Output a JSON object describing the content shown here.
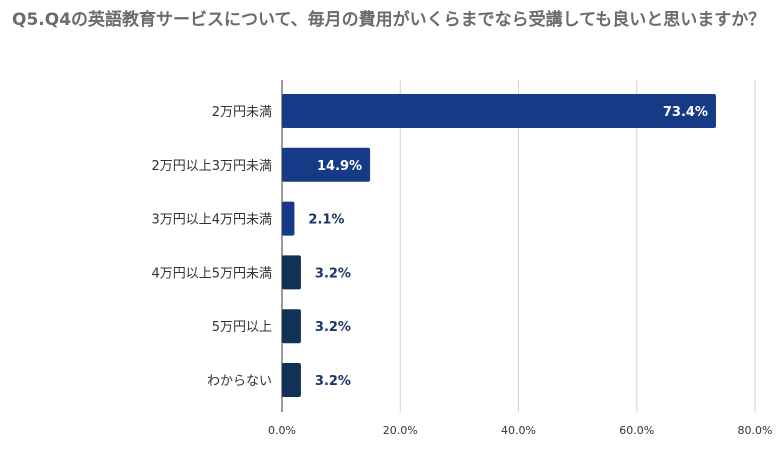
{
  "chart_data": {
    "type": "bar",
    "orientation": "horizontal",
    "title": "Q5.Q4の英語教育サービスについて、毎月の費用がいくらまでなら受講しても良いと思いますか？",
    "categories": [
      "2万円未満",
      "2万円以上3万円未満",
      "3万円以上4万円未満",
      "4万円以上5万円未満",
      "5万円以上",
      "わからない"
    ],
    "values": [
      73.4,
      14.9,
      2.1,
      3.2,
      3.2,
      3.2
    ],
    "value_labels": [
      "73.4%",
      "14.9%",
      "2.1%",
      "3.2%",
      "3.2%",
      "3.2%"
    ],
    "xlim": [
      0,
      80
    ],
    "xticks": [
      0,
      20,
      40,
      60,
      80
    ],
    "xtick_labels": [
      "0.0%",
      "20.0%",
      "40.0%",
      "60.0%",
      "80.0%"
    ],
    "grid": true,
    "legend": "none",
    "colors": {
      "bar_primary": "#173a86",
      "bar_secondary": "#0f3256",
      "grid": "#d3d3d3",
      "label_inside": "#ffffff",
      "label_outside": "#1a3668"
    }
  }
}
